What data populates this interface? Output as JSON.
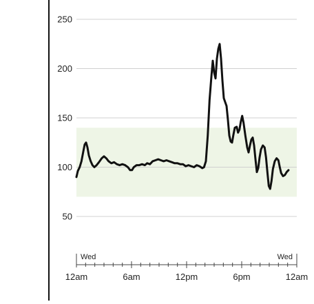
{
  "chart_data": {
    "type": "line",
    "title": "",
    "xlabel": "",
    "ylabel": "",
    "ylim": [
      25,
      260
    ],
    "xlim": [
      0,
      24
    ],
    "yticks": [
      50,
      100,
      150,
      200,
      250
    ],
    "xticks": [
      {
        "x": 0,
        "label": "12am"
      },
      {
        "x": 6,
        "label": "6am"
      },
      {
        "x": 12,
        "label": "12pm"
      },
      {
        "x": 18,
        "label": "6pm"
      },
      {
        "x": 24,
        "label": "12am"
      }
    ],
    "day_labels": [
      {
        "x": 0,
        "label": "Wed"
      },
      {
        "x": 24,
        "label": "Wed"
      }
    ],
    "target_range": {
      "low": 70,
      "high": 140
    },
    "grid": true,
    "colors": {
      "line": "#111111",
      "target_band": "#eef5e6",
      "grid": "#d0d0d0",
      "axis": "#444444",
      "left_border": "#111111"
    },
    "series": [
      {
        "name": "",
        "points": [
          [
            0.0,
            90
          ],
          [
            0.15,
            96
          ],
          [
            0.35,
            100
          ],
          [
            0.55,
            106
          ],
          [
            0.75,
            116
          ],
          [
            0.9,
            123
          ],
          [
            1.05,
            125
          ],
          [
            1.2,
            120
          ],
          [
            1.35,
            112
          ],
          [
            1.55,
            106
          ],
          [
            1.75,
            102
          ],
          [
            1.95,
            100
          ],
          [
            2.2,
            102
          ],
          [
            2.45,
            105
          ],
          [
            2.75,
            109
          ],
          [
            3.0,
            111
          ],
          [
            3.25,
            109
          ],
          [
            3.5,
            106
          ],
          [
            3.8,
            104
          ],
          [
            4.1,
            105
          ],
          [
            4.4,
            103
          ],
          [
            4.7,
            102
          ],
          [
            5.0,
            103
          ],
          [
            5.3,
            102
          ],
          [
            5.6,
            100
          ],
          [
            5.85,
            97
          ],
          [
            6.05,
            97
          ],
          [
            6.25,
            100
          ],
          [
            6.55,
            102
          ],
          [
            6.85,
            102
          ],
          [
            7.15,
            103
          ],
          [
            7.45,
            102
          ],
          [
            7.7,
            104
          ],
          [
            8.0,
            103
          ],
          [
            8.3,
            106
          ],
          [
            8.6,
            107
          ],
          [
            8.9,
            108
          ],
          [
            9.2,
            107
          ],
          [
            9.5,
            106
          ],
          [
            9.8,
            107
          ],
          [
            10.1,
            106
          ],
          [
            10.4,
            105
          ],
          [
            10.7,
            104
          ],
          [
            11.0,
            104
          ],
          [
            11.3,
            103
          ],
          [
            11.6,
            103
          ],
          [
            11.9,
            101
          ],
          [
            12.2,
            102
          ],
          [
            12.5,
            101
          ],
          [
            12.8,
            100
          ],
          [
            13.1,
            102
          ],
          [
            13.4,
            101
          ],
          [
            13.7,
            99
          ],
          [
            13.9,
            100
          ],
          [
            14.1,
            106
          ],
          [
            14.3,
            132
          ],
          [
            14.5,
            168
          ],
          [
            14.7,
            192
          ],
          [
            14.85,
            208
          ],
          [
            15.0,
            196
          ],
          [
            15.15,
            190
          ],
          [
            15.3,
            210
          ],
          [
            15.45,
            220
          ],
          [
            15.6,
            225
          ],
          [
            15.75,
            210
          ],
          [
            15.9,
            188
          ],
          [
            16.05,
            170
          ],
          [
            16.2,
            166
          ],
          [
            16.35,
            162
          ],
          [
            16.5,
            148
          ],
          [
            16.65,
            132
          ],
          [
            16.8,
            126
          ],
          [
            16.95,
            125
          ],
          [
            17.1,
            133
          ],
          [
            17.25,
            140
          ],
          [
            17.45,
            141
          ],
          [
            17.6,
            135
          ],
          [
            17.75,
            138
          ],
          [
            17.9,
            146
          ],
          [
            18.05,
            152
          ],
          [
            18.2,
            145
          ],
          [
            18.4,
            132
          ],
          [
            18.6,
            120
          ],
          [
            18.75,
            115
          ],
          [
            18.9,
            122
          ],
          [
            19.05,
            128
          ],
          [
            19.2,
            130
          ],
          [
            19.35,
            122
          ],
          [
            19.5,
            108
          ],
          [
            19.65,
            95
          ],
          [
            19.8,
            99
          ],
          [
            19.95,
            110
          ],
          [
            20.1,
            118
          ],
          [
            20.3,
            122
          ],
          [
            20.5,
            120
          ],
          [
            20.65,
            110
          ],
          [
            20.8,
            95
          ],
          [
            20.95,
            81
          ],
          [
            21.1,
            78
          ],
          [
            21.25,
            86
          ],
          [
            21.4,
            98
          ],
          [
            21.6,
            106
          ],
          [
            21.8,
            109
          ],
          [
            22.0,
            107
          ],
          [
            22.15,
            100
          ],
          [
            22.3,
            94
          ],
          [
            22.5,
            91
          ],
          [
            22.7,
            92
          ],
          [
            22.9,
            95
          ],
          [
            23.1,
            97
          ]
        ]
      }
    ]
  }
}
